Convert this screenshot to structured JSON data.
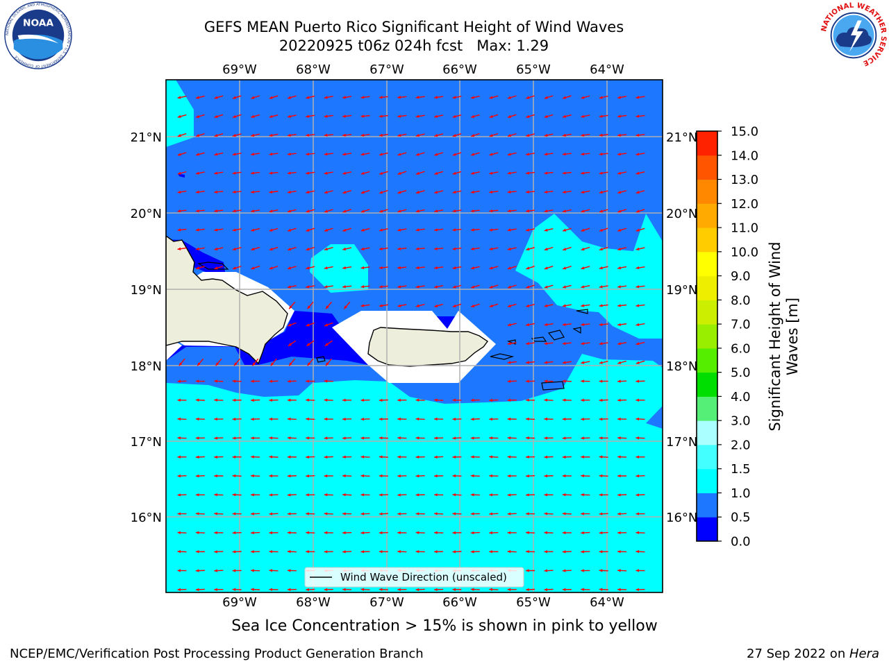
{
  "title": {
    "line1": "GEFS MEAN Puerto Rico Significant Height of Wind Waves",
    "line2": "20220925 t06z 024h fcst   Max: 1.29"
  },
  "map": {
    "lon_labels": [
      "69°W",
      "68°W",
      "67°W",
      "66°W",
      "65°W",
      "64°W"
    ],
    "lat_labels": [
      "21°N",
      "20°N",
      "19°N",
      "18°N",
      "17°N",
      "16°N"
    ],
    "extent": {
      "lon_min": -70.0,
      "lon_max": -63.25,
      "lat_min": 15.0,
      "lat_max": 21.75
    },
    "legend_label": "Wind Wave Direction (unscaled)",
    "arrow_color": "#ff0000",
    "land_color": "#eeeedd"
  },
  "colorbar": {
    "label": "Significant Height of Wind Waves [m]",
    "ticks": [
      "15.0",
      "14.0",
      "13.0",
      "12.0",
      "11.0",
      "10.0",
      "9.0",
      "8.0",
      "7.0",
      "6.0",
      "5.0",
      "4.0",
      "3.0",
      "2.0",
      "1.5",
      "1.0",
      "0.5",
      "0.0"
    ],
    "levels": [
      0.0,
      0.5,
      1.0,
      1.5,
      2.0,
      3.0,
      4.0,
      5.0,
      6.0,
      7.0,
      8.0,
      9.0,
      10.0,
      11.0,
      12.0,
      13.0,
      14.0,
      15.0
    ],
    "colors": [
      "#0000ff",
      "#1e78ff",
      "#00ffff",
      "#44ffff",
      "#aaffff",
      "#55ee77",
      "#00dd00",
      "#55ee00",
      "#99ee00",
      "#ccee00",
      "#eeee00",
      "#ffff00",
      "#ffcc00",
      "#ffaa00",
      "#ff8800",
      "#ff5500",
      "#ff2200"
    ]
  },
  "ice_note": "Sea Ice Concentration > 15% is shown in pink to yellow",
  "footer": {
    "left": "NCEP/EMC/Verification Post Processing Product Generation Branch",
    "right_prefix": "27 Sep 2022 on ",
    "right_host": "Hera"
  },
  "logos": {
    "noaa_text": "NOAA",
    "noaa_ring_text": "NATIONAL OCEANIC AND ATMOSPHERIC ADMINISTRATION • U.S. DEPARTMENT OF COMMERCE",
    "nws_ring_text": "NATIONAL WEATHER SERVICE"
  }
}
